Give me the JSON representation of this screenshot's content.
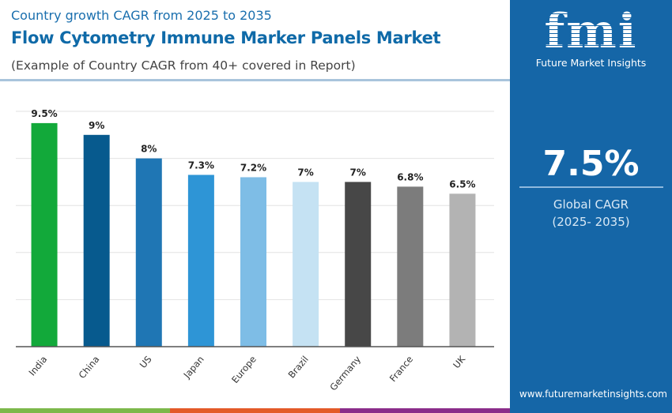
{
  "header": {
    "subtitle": "Country growth CAGR from 2025 to 2035",
    "title": "Flow Cytometry Immune Marker Panels Market",
    "note": "(Example of Country CAGR from 40+ covered in Report)"
  },
  "panel": {
    "logo_mark": "fmi",
    "logo_text": "Future Market Insights",
    "global_value": "7.5%",
    "global_label": "Global CAGR",
    "global_period": "(2025- 2035)",
    "url": "www.futuremarketinsights.com"
  },
  "colors": {
    "panel": "#1566a7",
    "stripe": [
      "#7cb84a",
      "#e35a28",
      "#8b2d8a"
    ]
  },
  "chart_data": {
    "type": "bar",
    "categories": [
      "India",
      "China",
      "US",
      "Japan",
      "Europe",
      "Brazil",
      "Germany",
      "France",
      "UK"
    ],
    "values": [
      9.5,
      9,
      8,
      7.3,
      7.2,
      7,
      7,
      6.8,
      6.5
    ],
    "labels": [
      "9.5%",
      "9%",
      "8%",
      "7.3%",
      "7.2%",
      "7%",
      "7%",
      "6.8%",
      "6.5%"
    ],
    "colors": [
      "#12a93a",
      "#075a8e",
      "#1f76b4",
      "#2e95d6",
      "#7ebde6",
      "#c5e2f3",
      "#474747",
      "#7c7c7c",
      "#b3b3b3"
    ],
    "ylim": [
      0,
      10
    ],
    "grid": true,
    "yticks": [
      2,
      4,
      6,
      8,
      10
    ],
    "xlabel": "",
    "ylabel": ""
  }
}
